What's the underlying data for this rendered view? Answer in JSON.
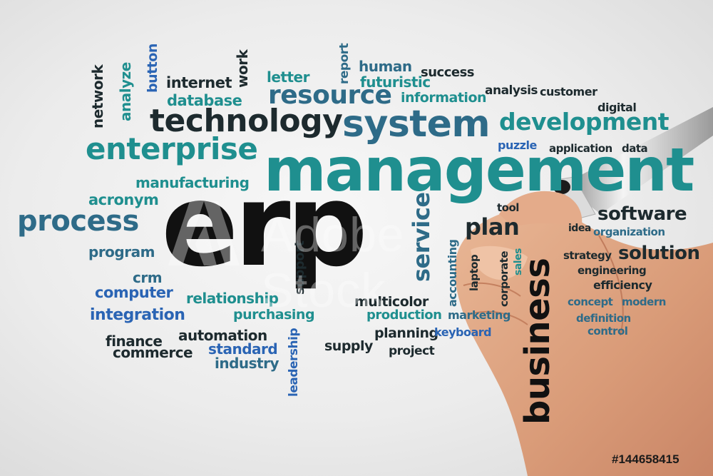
{
  "colors": {
    "dark": "#1d2a2e",
    "teal": "#1f8f8f",
    "blue": "#2a64b4",
    "steel": "#2e6b88",
    "black": "#111111"
  },
  "words": {
    "network": "network",
    "analyze": "analyze",
    "button": "button",
    "internet": "internet",
    "work": "work",
    "database": "database",
    "letter": "letter",
    "report": "report",
    "human": "human",
    "futuristic": "futuristic",
    "success": "success",
    "resource": "resource",
    "information": "information",
    "analysis": "analysis",
    "customer": "customer",
    "digital": "digital",
    "technology": "technology",
    "system": "system",
    "development": "development",
    "enterprise": "enterprise",
    "puzzle": "puzzle",
    "application": "application",
    "data": "data",
    "management": "management",
    "manufacturing": "manufacturing",
    "acronym": "acronym",
    "erp": "erp",
    "process": "process",
    "tool": "tool",
    "software": "software",
    "service": "service",
    "plan": "plan",
    "idea": "idea",
    "organization": "organization",
    "program": "program",
    "support": "support",
    "accounting": "accounting",
    "corporate": "corporate",
    "sales": "sales",
    "laptop": "laptop",
    "strategy": "strategy",
    "solution": "solution",
    "business": "business",
    "engineering": "engineering",
    "crm": "crm",
    "computer": "computer",
    "efficiency": "efficiency",
    "relationship": "relationship",
    "multicolor": "multicolor",
    "concept": "concept",
    "modern": "modern",
    "integration": "integration",
    "purchasing": "purchasing",
    "production": "production",
    "marketing": "marketing",
    "definition": "definition",
    "control": "control",
    "finance": "finance",
    "automation": "automation",
    "planning": "planning",
    "keyboard": "keyboard",
    "commerce": "commerce",
    "standard": "standard",
    "leadership": "leadership",
    "supply": "supply",
    "project": "project",
    "industry": "industry"
  },
  "watermark": "Adobe Stock",
  "stock_id": "#144658415"
}
